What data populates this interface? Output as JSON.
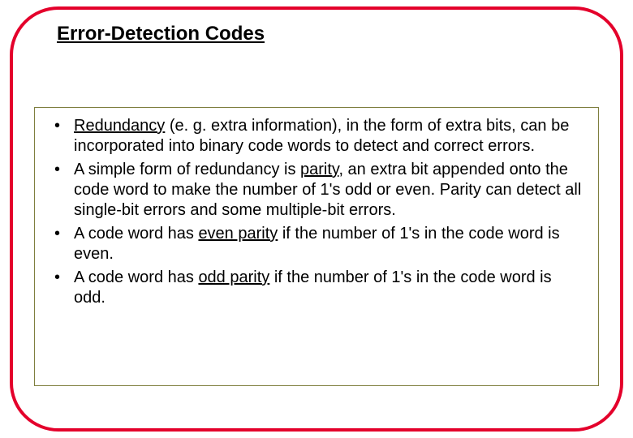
{
  "title": "Error-Detection Codes",
  "bullets": [
    {
      "pre": "",
      "u1": "Redundancy",
      "mid": " (e. g. extra information), in the form of extra bits, can be incorporated into binary code words to detect and correct errors.",
      "u2": "",
      "post": ""
    },
    {
      "pre": "A simple form of redundancy is ",
      "u1": "parity",
      "mid": ", an extra bit appended onto the code word to make the number of 1's odd or even. Parity can detect all single-bit errors and some multiple-bit errors.",
      "u2": "",
      "post": ""
    },
    {
      "pre": "A code word has ",
      "u1": "even parity",
      "mid": " if the number of 1's in the code word is even.",
      "u2": "",
      "post": ""
    },
    {
      "pre": "A code word has ",
      "u1": "odd parity",
      "mid": " if the number of 1's in the code word is odd.",
      "u2": "",
      "post": ""
    }
  ],
  "colors": {
    "frame_border": "#e4002b",
    "content_border": "#7f7f3f",
    "background": "#ffffff",
    "text": "#000000"
  },
  "typography": {
    "title_fontsize": 24,
    "body_fontsize": 20,
    "font_family": "Arial"
  },
  "layout": {
    "frame_radius": 60,
    "frame_border_width": 4
  }
}
